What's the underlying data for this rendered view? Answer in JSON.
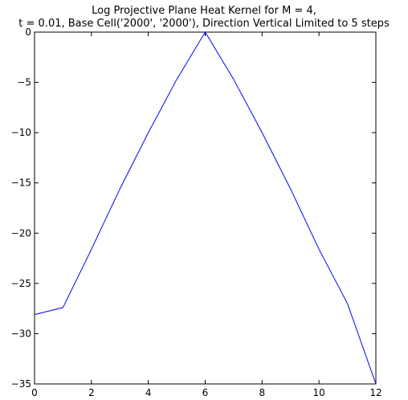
{
  "chart_data": {
    "type": "line",
    "title": [
      "Log Projective Plane Heat Kernel for M = 4,",
      "t = 0.01, Base Cell('2000', '2000'), Direction Vertical Limited to 5 steps"
    ],
    "xlabel": "",
    "ylabel": "",
    "xlim": [
      0,
      12
    ],
    "ylim": [
      -35,
      0
    ],
    "xticks": [
      "0",
      "2",
      "4",
      "6",
      "8",
      "10",
      "12"
    ],
    "yticks": [
      "0",
      "−5",
      "−10",
      "−15",
      "−20",
      "−25",
      "−30",
      "−35"
    ],
    "grid": false,
    "line_color": "#0000ff",
    "series": [
      {
        "x": [
          0,
          1,
          2,
          3,
          4,
          5,
          6,
          7,
          8,
          9,
          10,
          11,
          12
        ],
        "y": [
          -28.1,
          -27.4,
          -21.6,
          -15.6,
          -10.0,
          -4.7,
          0.0,
          -4.7,
          -10.0,
          -15.6,
          -21.6,
          -27.0,
          -35.0
        ]
      }
    ]
  }
}
